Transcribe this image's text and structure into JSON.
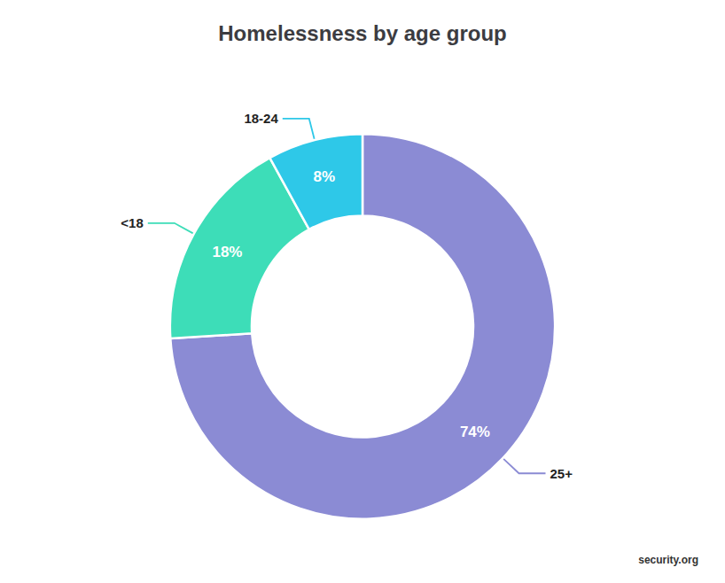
{
  "chart_data": {
    "type": "pie",
    "title": "Homelessness by age group",
    "categories": [
      "25+",
      "<18",
      "18-24"
    ],
    "values": [
      74,
      18,
      8
    ],
    "value_labels": [
      "74%",
      "18%",
      "8%"
    ],
    "colors": [
      "#8B8BD4",
      "#3DDDB8",
      "#2EC8E8"
    ],
    "data_labels": true,
    "annotations": [
      "security.org"
    ]
  }
}
